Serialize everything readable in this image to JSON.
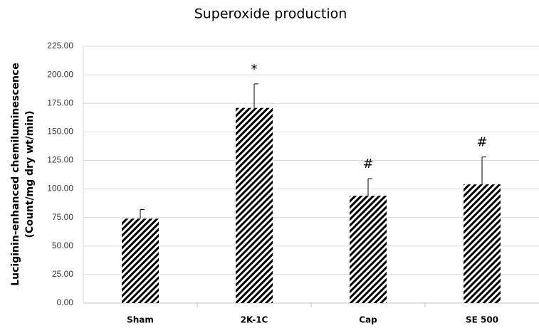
{
  "chart_data": {
    "type": "bar",
    "title": "Superoxide production",
    "y_label": [
      "Luciginin-enhanced chemiluminescence",
      "(Count/mg dry wt/min)"
    ],
    "categories": [
      "Sham",
      "2K-1C",
      "Cap",
      "SE 500"
    ],
    "values": [
      74,
      171,
      94,
      104
    ],
    "errors": [
      8,
      21,
      15,
      24
    ],
    "color": "#000000",
    "annotations": [
      {
        "category": "2K-1C",
        "text": "*"
      },
      {
        "category": "Cap",
        "text": "#"
      },
      {
        "category": "SE 500",
        "text": "#"
      }
    ],
    "ylim": [
      0,
      225
    ],
    "yticks": [
      {
        "value": 0,
        "label": "0.00"
      },
      {
        "value": 25,
        "label": "25.00"
      },
      {
        "value": 50,
        "label": "50.00"
      },
      {
        "value": 75,
        "label": "75.00"
      },
      {
        "value": 100,
        "label": "100.00"
      },
      {
        "value": 125,
        "label": "125.00"
      },
      {
        "value": 150,
        "label": "150.00"
      },
      {
        "value": 175,
        "label": "175.00"
      },
      {
        "value": 200,
        "label": "200.00"
      },
      {
        "value": 225,
        "label": "225.00"
      }
    ],
    "grid": true
  }
}
